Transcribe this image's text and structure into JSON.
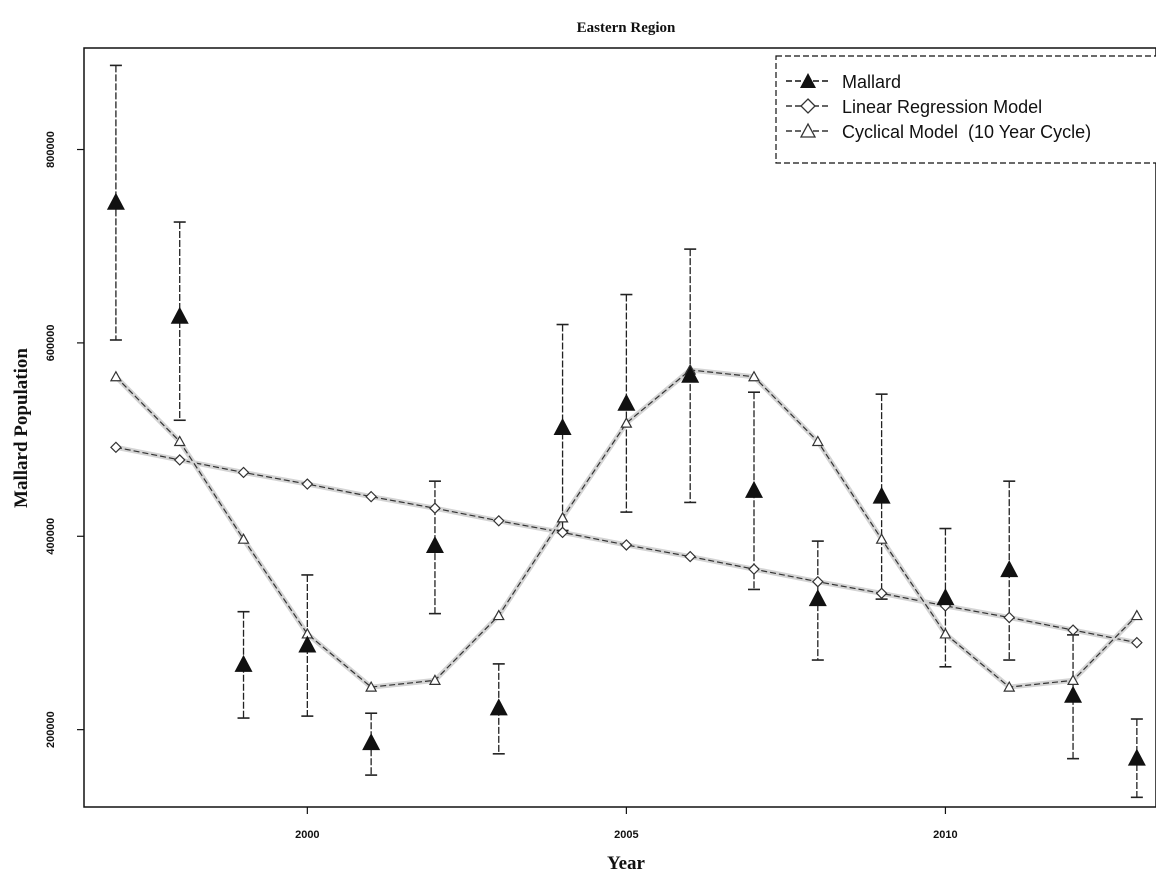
{
  "chart_data": {
    "type": "line",
    "title": "Eastern Region",
    "xlabel": "Year",
    "ylabel": "Mallard Population",
    "xlim": [
      1996.5,
      2013.3
    ],
    "ylim": [
      120000,
      905000
    ],
    "x_ticks": [
      2000,
      2005,
      2010
    ],
    "y_ticks": [
      200000,
      400000,
      600000,
      800000
    ],
    "x_tick_labels": [
      "2000",
      "2005",
      "2010"
    ],
    "y_tick_labels": [
      "200000",
      "400000",
      "600000",
      "800000"
    ],
    "legend_position": "top-right",
    "grid": false,
    "series": [
      {
        "name": "Mallard",
        "marker": "filled-triangle",
        "color": "#111111",
        "x": [
          1997,
          1998,
          1999,
          2000,
          2001,
          2002,
          2003,
          2004,
          2005,
          2006,
          2007,
          2008,
          2009,
          2010,
          2011,
          2012,
          2013
        ],
        "y": [
          745000,
          627000,
          267000,
          287000,
          186000,
          390000,
          222000,
          512000,
          537000,
          566000,
          447000,
          335000,
          441000,
          336000,
          365000,
          235000,
          170000
        ],
        "lower": [
          603000,
          520000,
          212000,
          214000,
          153000,
          320000,
          175000,
          406000,
          425000,
          435000,
          345000,
          272000,
          335000,
          265000,
          272000,
          170000,
          130000
        ],
        "upper": [
          887000,
          725000,
          322000,
          360000,
          217000,
          457000,
          268000,
          619000,
          650000,
          697000,
          549000,
          395000,
          547000,
          408000,
          457000,
          298000,
          211000
        ]
      },
      {
        "name": "Linear Regression Model",
        "marker": "open-diamond",
        "color": "#333333",
        "x": [
          1997,
          1998,
          1999,
          2000,
          2001,
          2002,
          2003,
          2004,
          2005,
          2006,
          2007,
          2008,
          2009,
          2010,
          2011,
          2012,
          2013
        ],
        "y": [
          492000,
          479000,
          466000,
          454000,
          441000,
          429000,
          416000,
          404000,
          391000,
          379000,
          366000,
          353000,
          341000,
          328000,
          316000,
          303000,
          290000
        ]
      },
      {
        "name": "Cyclical Model  (10 Year Cycle)",
        "marker": "open-triangle",
        "color": "#333333",
        "x": [
          1997,
          1998,
          1999,
          2000,
          2001,
          2002,
          2003,
          2004,
          2005,
          2006,
          2007,
          2008,
          2009,
          2010,
          2011,
          2012,
          2013
        ],
        "y": [
          565000,
          498000,
          397000,
          299000,
          244000,
          251000,
          318000,
          419000,
          517000,
          572000,
          565000,
          498000,
          397000,
          299000,
          244000,
          251000,
          318000
        ]
      }
    ]
  }
}
